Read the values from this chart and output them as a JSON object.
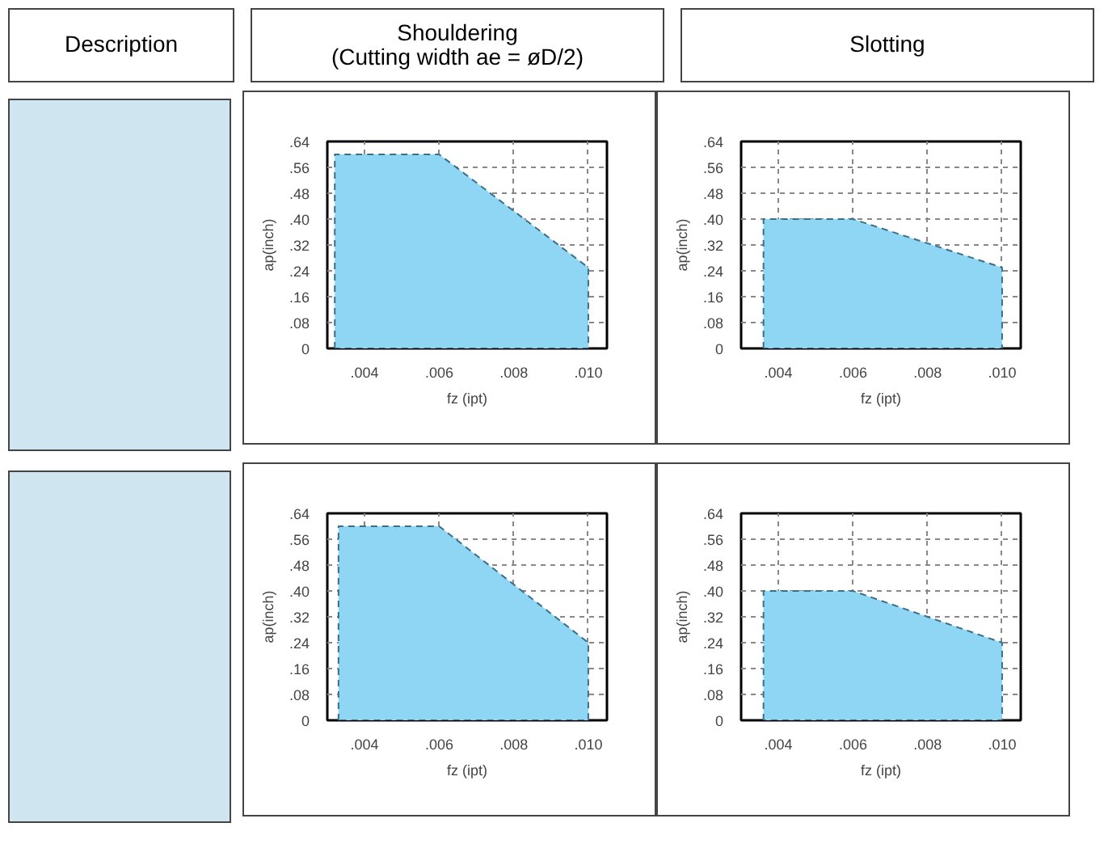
{
  "chart_data": [
    {
      "type": "area",
      "title": "Shouldering\n(Cutting width ae = øD/2)",
      "annotations": [
        "Description"
      ],
      "xlabel": "fz (ipt)",
      "ylabel": "ap(inch)",
      "x": [
        0.0032,
        0.006,
        0.01
      ],
      "series": [
        {
          "color": "#8fd6f4",
          "values": [
            0.6,
            0.6,
            0.25
          ]
        }
      ],
      "xlim": [
        0.003,
        0.0105
      ],
      "ylim": [
        0,
        0.64
      ],
      "xticks": [
        {
          "value": 0.004,
          "label": ".004"
        },
        {
          "value": 0.006,
          "label": ".006"
        },
        {
          "value": 0.008,
          "label": ".008"
        },
        {
          "value": 0.01,
          "label": ".010"
        }
      ],
      "yticks": [
        {
          "value": 0,
          "label": "0"
        },
        {
          "value": 0.08,
          "label": ".08"
        },
        {
          "value": 0.16,
          "label": ".16"
        },
        {
          "value": 0.24,
          "label": ".24"
        },
        {
          "value": 0.32,
          "label": ".32"
        },
        {
          "value": 0.4,
          "label": ".40"
        },
        {
          "value": 0.48,
          "label": ".48"
        },
        {
          "value": 0.56,
          "label": ".56"
        },
        {
          "value": 0.64,
          "label": ".64"
        }
      ],
      "grid": true,
      "line_style": "dashed"
    },
    {
      "type": "area",
      "title": "Slotting",
      "xlabel": "fz (ipt)",
      "ylabel": "ap(inch)",
      "x": [
        0.0036,
        0.006,
        0.01
      ],
      "series": [
        {
          "color": "#8fd6f4",
          "values": [
            0.4,
            0.4,
            0.25
          ]
        }
      ],
      "xlim": [
        0.003,
        0.0105
      ],
      "ylim": [
        0,
        0.64
      ],
      "xticks": [
        {
          "value": 0.004,
          "label": ".004"
        },
        {
          "value": 0.006,
          "label": ".006"
        },
        {
          "value": 0.008,
          "label": ".008"
        },
        {
          "value": 0.01,
          "label": ".010"
        }
      ],
      "yticks": [
        {
          "value": 0,
          "label": "0"
        },
        {
          "value": 0.08,
          "label": ".08"
        },
        {
          "value": 0.16,
          "label": ".16"
        },
        {
          "value": 0.24,
          "label": ".24"
        },
        {
          "value": 0.32,
          "label": ".32"
        },
        {
          "value": 0.4,
          "label": ".40"
        },
        {
          "value": 0.48,
          "label": ".48"
        },
        {
          "value": 0.56,
          "label": ".56"
        },
        {
          "value": 0.64,
          "label": ".64"
        }
      ],
      "grid": true,
      "line_style": "dashed"
    },
    {
      "type": "area",
      "xlabel": "fz (ipt)",
      "ylabel": "ap(inch)",
      "x": [
        0.0033,
        0.006,
        0.01
      ],
      "series": [
        {
          "color": "#8fd6f4",
          "values": [
            0.6,
            0.6,
            0.24
          ]
        }
      ],
      "xlim": [
        0.003,
        0.0105
      ],
      "ylim": [
        0,
        0.64
      ],
      "xticks": [
        {
          "value": 0.004,
          "label": ".004"
        },
        {
          "value": 0.006,
          "label": ".006"
        },
        {
          "value": 0.008,
          "label": ".008"
        },
        {
          "value": 0.01,
          "label": ".010"
        }
      ],
      "yticks": [
        {
          "value": 0,
          "label": "0"
        },
        {
          "value": 0.08,
          "label": ".08"
        },
        {
          "value": 0.16,
          "label": ".16"
        },
        {
          "value": 0.24,
          "label": ".24"
        },
        {
          "value": 0.32,
          "label": ".32"
        },
        {
          "value": 0.4,
          "label": ".40"
        },
        {
          "value": 0.48,
          "label": ".48"
        },
        {
          "value": 0.56,
          "label": ".56"
        },
        {
          "value": 0.64,
          "label": ".64"
        }
      ],
      "grid": true,
      "line_style": "dashed"
    },
    {
      "type": "area",
      "xlabel": "fz (ipt)",
      "ylabel": "ap(inch)",
      "x": [
        0.0036,
        0.006,
        0.01
      ],
      "series": [
        {
          "color": "#8fd6f4",
          "values": [
            0.4,
            0.4,
            0.24
          ]
        }
      ],
      "xlim": [
        0.003,
        0.0105
      ],
      "ylim": [
        0,
        0.64
      ],
      "xticks": [
        {
          "value": 0.004,
          "label": ".004"
        },
        {
          "value": 0.006,
          "label": ".006"
        },
        {
          "value": 0.008,
          "label": ".008"
        },
        {
          "value": 0.01,
          "label": ".010"
        }
      ],
      "yticks": [
        {
          "value": 0,
          "label": "0"
        },
        {
          "value": 0.08,
          "label": ".08"
        },
        {
          "value": 0.16,
          "label": ".16"
        },
        {
          "value": 0.24,
          "label": ".24"
        },
        {
          "value": 0.32,
          "label": ".32"
        },
        {
          "value": 0.4,
          "label": ".40"
        },
        {
          "value": 0.48,
          "label": ".48"
        },
        {
          "value": 0.56,
          "label": ".56"
        },
        {
          "value": 0.64,
          "label": ".64"
        }
      ],
      "grid": true,
      "line_style": "dashed"
    }
  ]
}
